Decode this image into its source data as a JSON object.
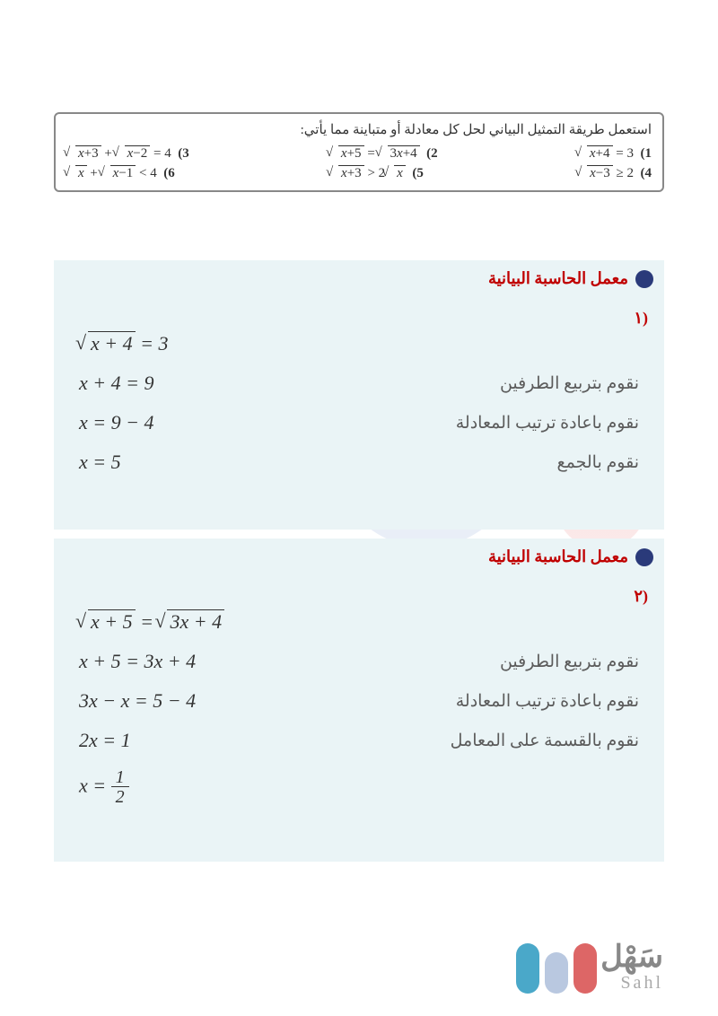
{
  "question": {
    "instruction": "استعمل طريقة التمثيل البياني لحل كل معادلة أو متباينة مما يأتي:",
    "items": [
      {
        "num": "1",
        "eq": "√(x+4) = 3"
      },
      {
        "num": "2",
        "eq": "√(x+5) = √(3x+4)"
      },
      {
        "num": "3",
        "eq": "√(x+3) + √(x−2) = 4"
      },
      {
        "num": "4",
        "eq": "√(x−3) ≥ 2"
      },
      {
        "num": "5",
        "eq": "√(x+3) > 2√x"
      },
      {
        "num": "6",
        "eq": "√x + √(x−1) < 4"
      }
    ]
  },
  "panel1": {
    "title": "معمل الحاسبة البيانية",
    "subnum": "(١",
    "rows": [
      {
        "hint": "",
        "math": "√(x+4) = 3"
      },
      {
        "hint": "نقوم بتربيع الطرفين",
        "math": "x + 4 = 9"
      },
      {
        "hint": "نقوم باعادة ترتيب المعادلة",
        "math": "x = 9 − 4"
      },
      {
        "hint": "نقوم بالجمع",
        "math": "x = 5"
      }
    ]
  },
  "panel2": {
    "title": "معمل الحاسبة البيانية",
    "subnum": "(٢",
    "rows": [
      {
        "hint": "",
        "math": "√(x+5) = √(3x+4)"
      },
      {
        "hint": "نقوم بتربيع الطرفين",
        "math": "x + 5 = 3x + 4"
      },
      {
        "hint": "نقوم باعادة ترتيب المعادلة",
        "math": "3x − x = 5 − 4"
      },
      {
        "hint": "نقوم بالقسمة على المعامل",
        "math": "2x = 1"
      },
      {
        "hint": "",
        "math": "x = 1/2",
        "frac": {
          "num": "1",
          "den": "2"
        }
      }
    ]
  },
  "logo": {
    "ar": "سَهْل",
    "en": "Sahl"
  },
  "colors": {
    "panel_bg": "#eaf4f6",
    "title_red": "#c00000",
    "badge": "#2a3a7a",
    "text": "#333333"
  }
}
